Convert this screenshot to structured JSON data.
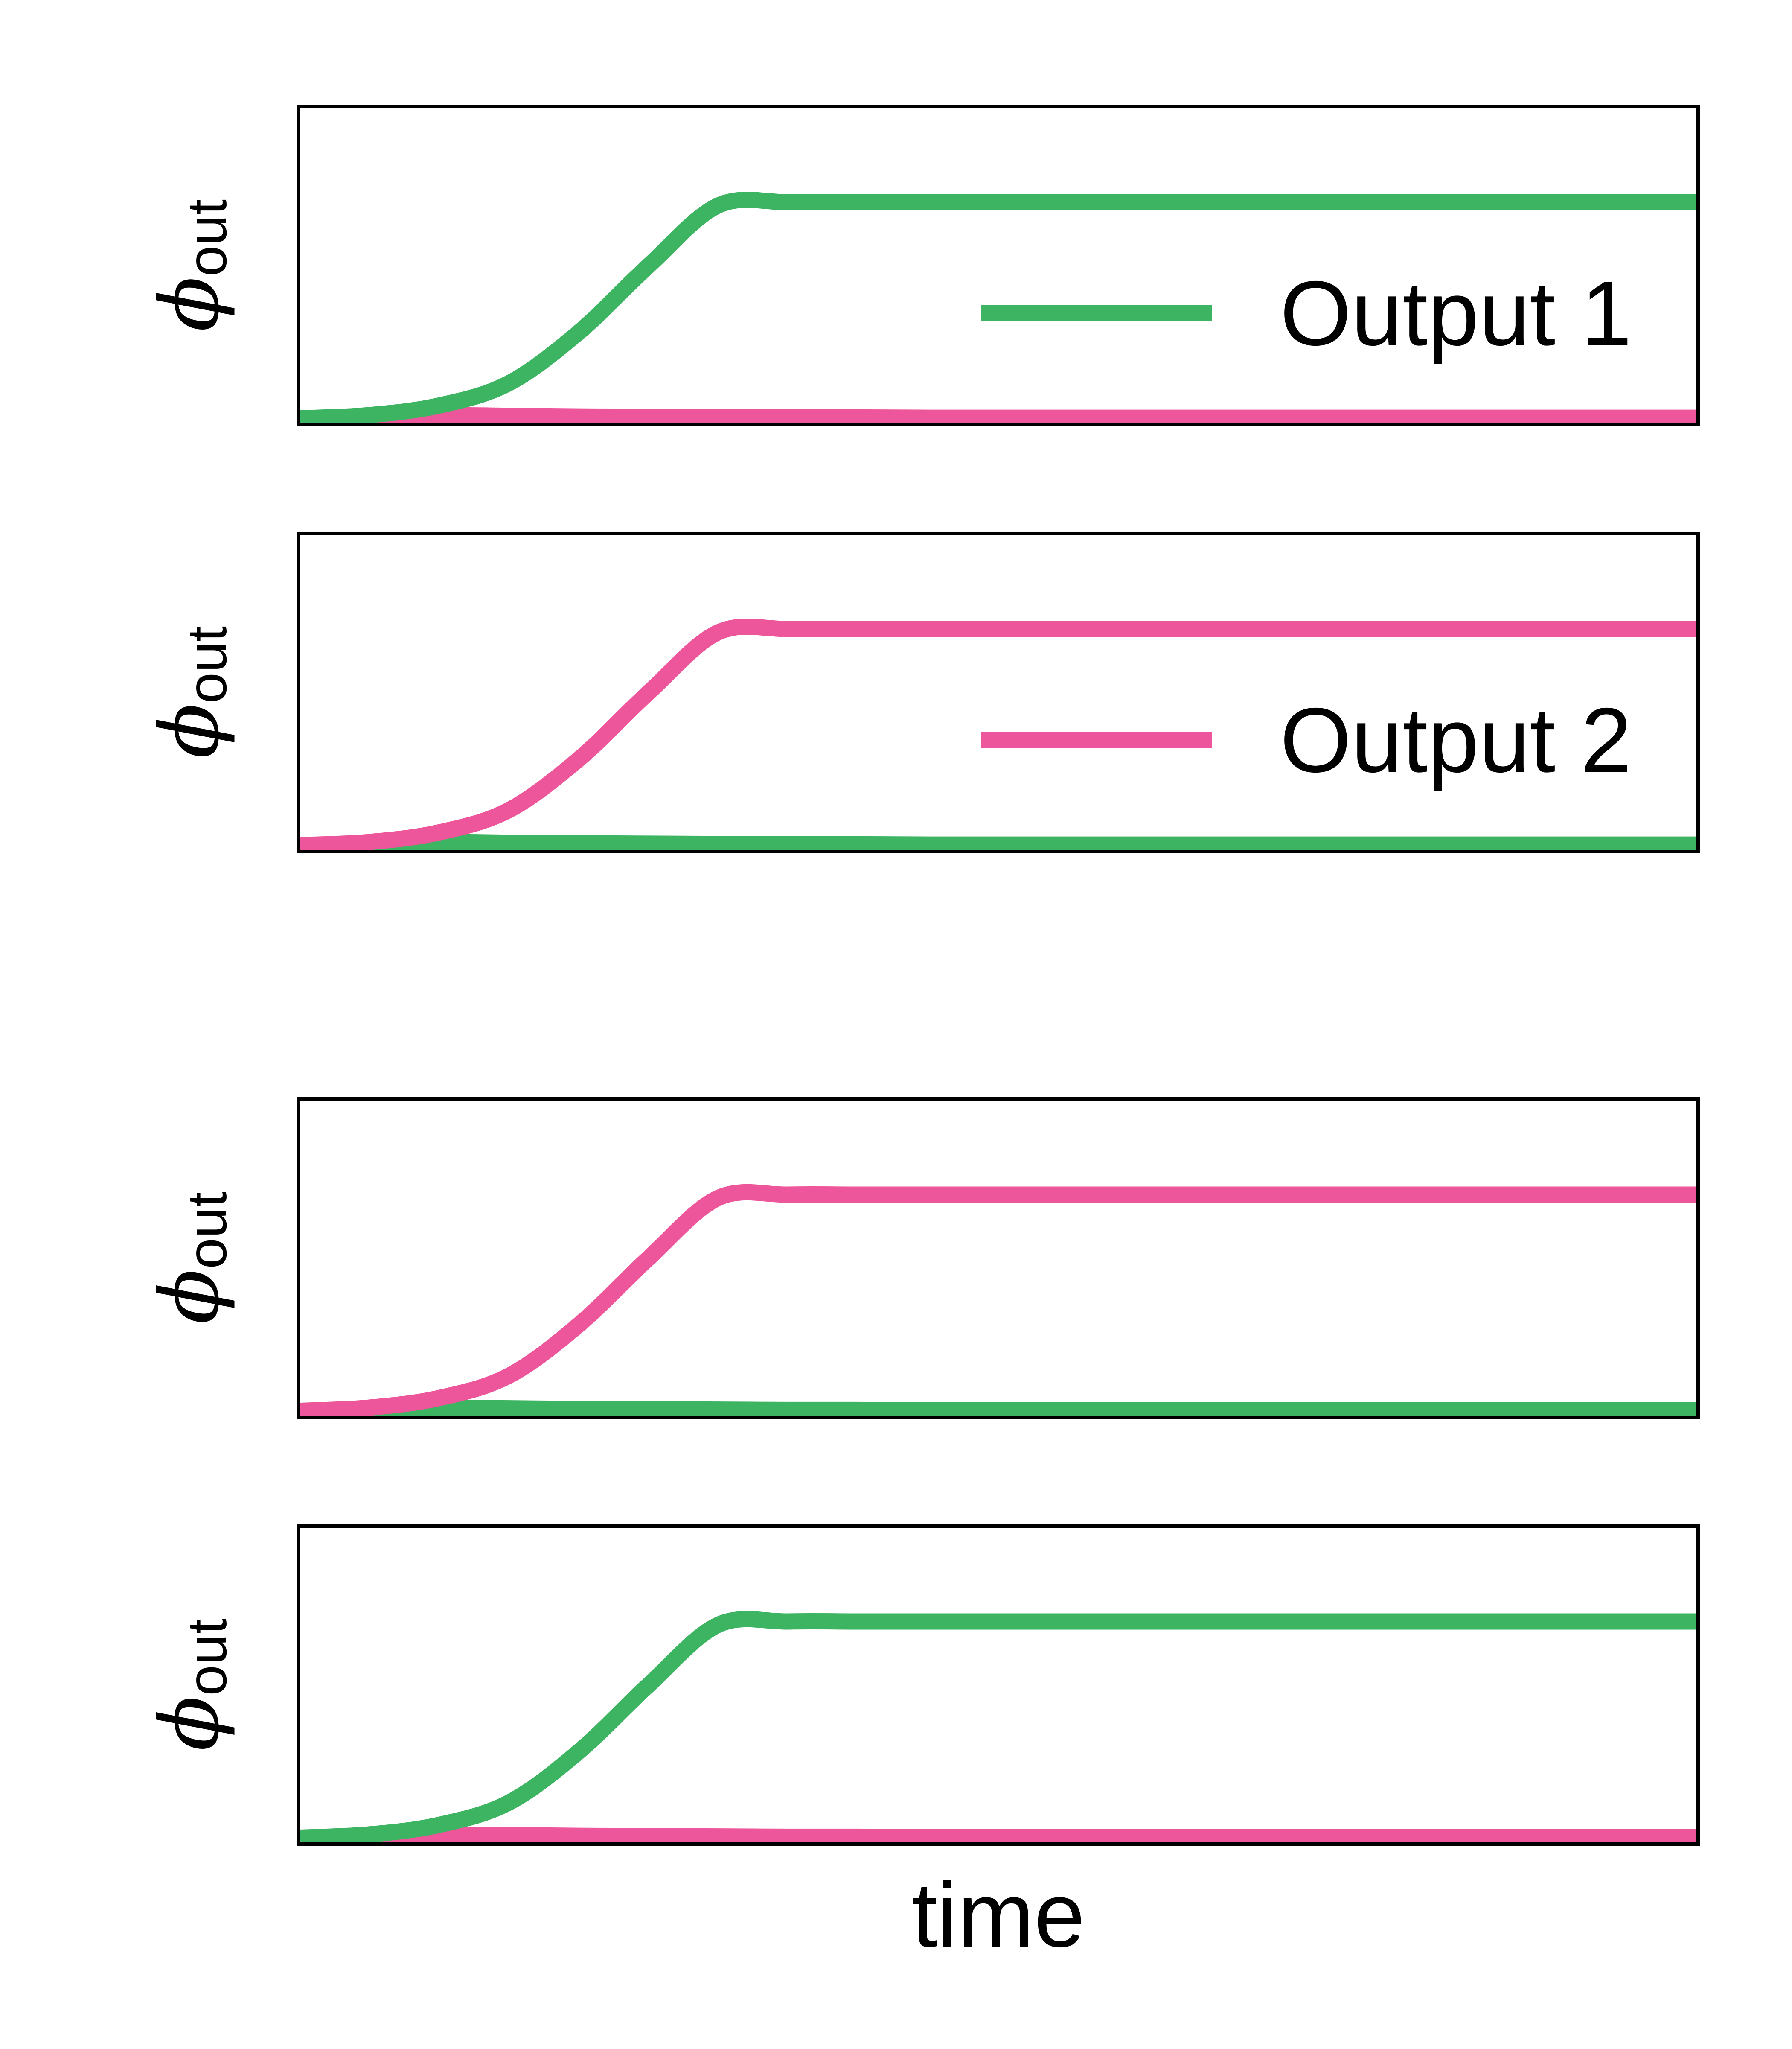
{
  "colors": {
    "green": "#3cb462",
    "pink": "#ee569c",
    "axis": "#000000",
    "background": "#ffffff"
  },
  "chart_data": [
    {
      "type": "line",
      "ylabel": "ϕ",
      "ylabel_subscript": "out",
      "xlabel": "",
      "legend": {
        "label": "Output 1",
        "series_index": 0,
        "placement": "lower-right"
      },
      "xlim": [
        0,
        100
      ],
      "ylim": [
        0,
        1
      ],
      "series": [
        {
          "name": "Output 1",
          "color": "#3cb462",
          "x": [
            0,
            5,
            10,
            15,
            20,
            25,
            30,
            35,
            40,
            45,
            50,
            55,
            60,
            65,
            70,
            75,
            80,
            85,
            90,
            95,
            100
          ],
          "y": [
            0.02,
            0.03,
            0.06,
            0.13,
            0.29,
            0.5,
            0.69,
            0.7,
            0.7,
            0.7,
            0.7,
            0.7,
            0.7,
            0.7,
            0.7,
            0.7,
            0.7,
            0.7,
            0.7,
            0.7,
            0.7
          ]
        },
        {
          "color": "#ee569c",
          "x": [
            0,
            5,
            10,
            15,
            20,
            25,
            30,
            35,
            40,
            45,
            50,
            55,
            60,
            65,
            70,
            75,
            80,
            85,
            90,
            95,
            100
          ],
          "y": [
            0.02,
            0.025,
            0.03,
            0.028,
            0.026,
            0.025,
            0.024,
            0.023,
            0.023,
            0.022,
            0.022,
            0.022,
            0.022,
            0.022,
            0.022,
            0.022,
            0.022,
            0.022,
            0.022,
            0.022,
            0.022
          ]
        }
      ]
    },
    {
      "type": "line",
      "ylabel": "ϕ",
      "ylabel_subscript": "out",
      "xlabel": "",
      "legend": {
        "label": "Output 2",
        "series_index": 0,
        "placement": "lower-right"
      },
      "xlim": [
        0,
        100
      ],
      "ylim": [
        0,
        1
      ],
      "series": [
        {
          "name": "Output 2",
          "color": "#ee569c",
          "x": [
            0,
            5,
            10,
            15,
            20,
            25,
            30,
            35,
            40,
            45,
            50,
            55,
            60,
            65,
            70,
            75,
            80,
            85,
            90,
            95,
            100
          ],
          "y": [
            0.02,
            0.03,
            0.06,
            0.13,
            0.29,
            0.5,
            0.69,
            0.7,
            0.7,
            0.7,
            0.7,
            0.7,
            0.7,
            0.7,
            0.7,
            0.7,
            0.7,
            0.7,
            0.7,
            0.7,
            0.7
          ]
        },
        {
          "color": "#3cb462",
          "x": [
            0,
            5,
            10,
            15,
            20,
            25,
            30,
            35,
            40,
            45,
            50,
            55,
            60,
            65,
            70,
            75,
            80,
            85,
            90,
            95,
            100
          ],
          "y": [
            0.02,
            0.025,
            0.03,
            0.028,
            0.026,
            0.025,
            0.024,
            0.023,
            0.023,
            0.022,
            0.022,
            0.022,
            0.022,
            0.022,
            0.022,
            0.022,
            0.022,
            0.022,
            0.022,
            0.022,
            0.022
          ]
        }
      ]
    },
    {
      "type": "line",
      "ylabel": "ϕ",
      "ylabel_subscript": "out",
      "xlabel": "",
      "xlim": [
        0,
        100
      ],
      "ylim": [
        0,
        1
      ],
      "series": [
        {
          "color": "#ee569c",
          "x": [
            0,
            5,
            10,
            15,
            20,
            25,
            30,
            35,
            40,
            45,
            50,
            55,
            60,
            65,
            70,
            75,
            80,
            85,
            90,
            95,
            100
          ],
          "y": [
            0.02,
            0.03,
            0.06,
            0.13,
            0.29,
            0.5,
            0.69,
            0.7,
            0.7,
            0.7,
            0.7,
            0.7,
            0.7,
            0.7,
            0.7,
            0.7,
            0.7,
            0.7,
            0.7,
            0.7,
            0.7
          ]
        },
        {
          "color": "#3cb462",
          "x": [
            0,
            5,
            10,
            15,
            20,
            25,
            30,
            35,
            40,
            45,
            50,
            55,
            60,
            65,
            70,
            75,
            80,
            85,
            90,
            95,
            100
          ],
          "y": [
            0.02,
            0.025,
            0.03,
            0.028,
            0.026,
            0.025,
            0.024,
            0.023,
            0.023,
            0.022,
            0.022,
            0.022,
            0.022,
            0.022,
            0.022,
            0.022,
            0.022,
            0.022,
            0.022,
            0.022,
            0.022
          ]
        }
      ]
    },
    {
      "type": "line",
      "ylabel": "ϕ",
      "ylabel_subscript": "out",
      "xlabel": "time",
      "xlim": [
        0,
        100
      ],
      "ylim": [
        0,
        1
      ],
      "series": [
        {
          "color": "#3cb462",
          "x": [
            0,
            5,
            10,
            15,
            20,
            25,
            30,
            35,
            40,
            45,
            50,
            55,
            60,
            65,
            70,
            75,
            80,
            85,
            90,
            95,
            100
          ],
          "y": [
            0.02,
            0.03,
            0.06,
            0.13,
            0.29,
            0.5,
            0.69,
            0.7,
            0.7,
            0.7,
            0.7,
            0.7,
            0.7,
            0.7,
            0.7,
            0.7,
            0.7,
            0.7,
            0.7,
            0.7,
            0.7
          ]
        },
        {
          "color": "#ee569c",
          "x": [
            0,
            5,
            10,
            15,
            20,
            25,
            30,
            35,
            40,
            45,
            50,
            55,
            60,
            65,
            70,
            75,
            80,
            85,
            90,
            95,
            100
          ],
          "y": [
            0.02,
            0.025,
            0.03,
            0.028,
            0.026,
            0.025,
            0.024,
            0.023,
            0.023,
            0.022,
            0.022,
            0.022,
            0.022,
            0.022,
            0.022,
            0.022,
            0.022,
            0.022,
            0.022,
            0.022,
            0.022
          ]
        }
      ]
    }
  ]
}
